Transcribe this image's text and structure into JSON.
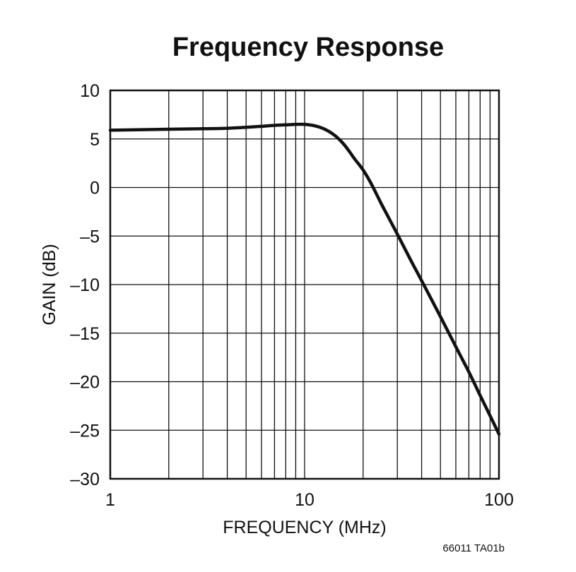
{
  "chart_data": {
    "type": "line",
    "title": "Frequency Response",
    "xlabel": "FREQUENCY (MHz)",
    "ylabel": "GAIN (dB)",
    "xscale": "log",
    "xlim": [
      1,
      100
    ],
    "ylim": [
      -30,
      10
    ],
    "xticks": [
      {
        "value": 1,
        "label": "1"
      },
      {
        "value": 10,
        "label": "10"
      },
      {
        "value": 100,
        "label": "100"
      }
    ],
    "yticks": [
      {
        "value": 10,
        "label": "10"
      },
      {
        "value": 5,
        "label": "5"
      },
      {
        "value": 0,
        "label": "0"
      },
      {
        "value": -5,
        "label": "–5"
      },
      {
        "value": -10,
        "label": "–10"
      },
      {
        "value": -15,
        "label": "–15"
      },
      {
        "value": -20,
        "label": "–20"
      },
      {
        "value": -25,
        "label": "–25"
      },
      {
        "value": -30,
        "label": "–30"
      }
    ],
    "grid": true,
    "series": [
      {
        "x": [
          1,
          2,
          3,
          4,
          5,
          6,
          7,
          8,
          9,
          10,
          11,
          12,
          13,
          14,
          15,
          16,
          17,
          18,
          20,
          22,
          25,
          30,
          35,
          40,
          50,
          60,
          70,
          80,
          90,
          100
        ],
        "y": [
          5.9,
          6.0,
          6.05,
          6.1,
          6.2,
          6.3,
          6.4,
          6.45,
          6.5,
          6.5,
          6.4,
          6.2,
          5.9,
          5.5,
          5.0,
          4.4,
          3.7,
          3.0,
          1.8,
          0.4,
          -1.8,
          -4.8,
          -7.4,
          -9.6,
          -13.3,
          -16.4,
          -19.0,
          -21.4,
          -23.5,
          -25.4
        ]
      }
    ]
  },
  "figure_id": "66011 TA01b"
}
